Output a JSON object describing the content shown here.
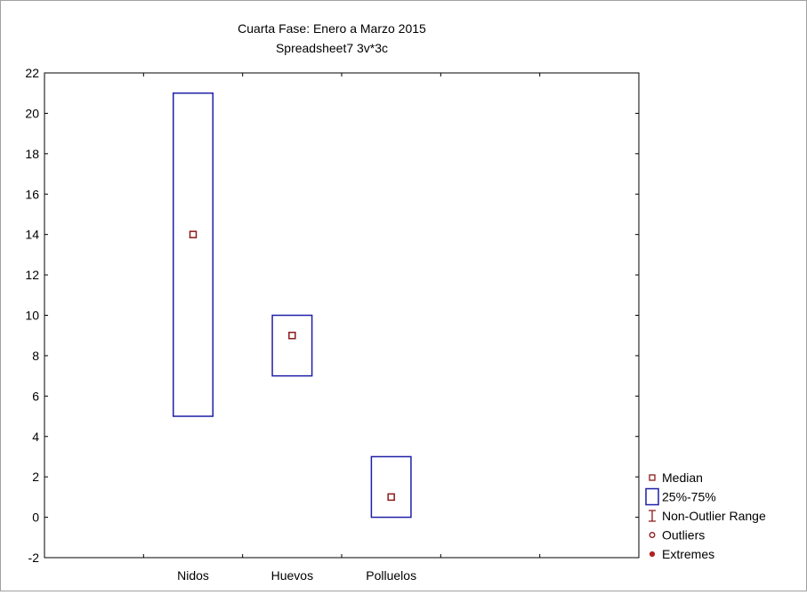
{
  "chart_data": {
    "type": "boxplot",
    "title": "Cuarta Fase: Enero a Marzo 2015",
    "subtitle": "Spreadsheet7 3v*3c",
    "xlabel": "",
    "ylabel": "",
    "categories": [
      "Nidos",
      "Huevos",
      "Polluelos"
    ],
    "median": [
      14,
      9,
      1
    ],
    "q1": [
      5,
      7,
      0
    ],
    "q3": [
      21,
      10,
      3
    ],
    "ylim": [
      -2,
      22
    ],
    "yticks": [
      "-2",
      "0",
      "2",
      "4",
      "6",
      "8",
      "10",
      "12",
      "14",
      "16",
      "18",
      "20",
      "22"
    ],
    "grid": false,
    "legend_position": "right",
    "legend": [
      {
        "symbol": "median",
        "label": "Median"
      },
      {
        "symbol": "box",
        "label": "25%-75%"
      },
      {
        "symbol": "whisker",
        "label": "Non-Outlier Range"
      },
      {
        "symbol": "outlier",
        "label": "Outliers"
      },
      {
        "symbol": "extreme",
        "label": "Extremes"
      }
    ],
    "colors": {
      "box": "#1f1fa8",
      "median": "#8b1a1a",
      "whisker": "#8b1a1a",
      "extreme": "#b22222"
    }
  }
}
